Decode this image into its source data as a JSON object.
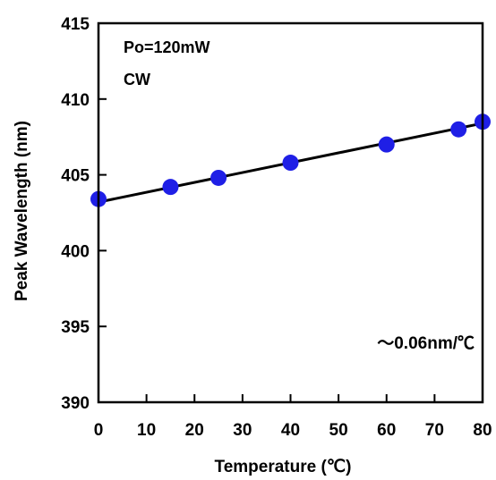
{
  "chart_data": {
    "type": "scatter",
    "xlabel": "Temperature (℃)",
    "ylabel": "Peak Wavelength (nm)",
    "xlim": [
      0,
      80
    ],
    "ylim": [
      390,
      415
    ],
    "xticks": [
      0,
      10,
      20,
      30,
      40,
      50,
      60,
      70,
      80
    ],
    "yticks": [
      390,
      395,
      400,
      405,
      410,
      415
    ],
    "grid": false,
    "series": [
      {
        "marker_color": "#1f1fe6",
        "points": [
          {
            "x": 0,
            "y": 403.4
          },
          {
            "x": 15,
            "y": 404.2
          },
          {
            "x": 25,
            "y": 404.8
          },
          {
            "x": 40,
            "y": 405.8
          },
          {
            "x": 60,
            "y": 407.0
          },
          {
            "x": 75,
            "y": 408.0
          },
          {
            "x": 80,
            "y": 408.5
          }
        ]
      }
    ],
    "trendline": {
      "x_start": 0,
      "y_start": 403.2,
      "x_end": 80,
      "y_end": 408.4
    },
    "annotations": {
      "condition_power": "Po=120mW",
      "condition_mode": "CW",
      "slope": "～0.06nm/℃"
    }
  }
}
